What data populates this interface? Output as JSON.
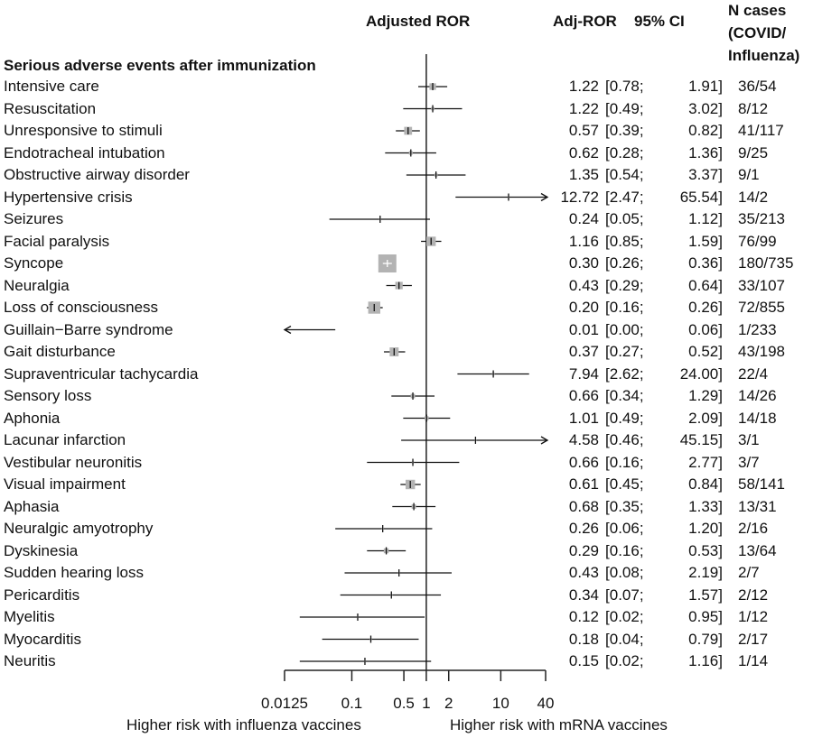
{
  "chart_data": {
    "type": "forest",
    "headers": {
      "plot": "Adjusted ROR",
      "estimate": "Adj-ROR",
      "ci": "95% CI",
      "cases": [
        "N cases",
        "(COVID/",
        "Influenza)"
      ]
    },
    "group_label": "Serious adverse events after immunization",
    "x_scale": "log",
    "xlim": [
      0.0125,
      40
    ],
    "x_ticks": [
      "0.0125",
      "0.1",
      "0.5",
      "1",
      "2",
      "10",
      "40"
    ],
    "reference_line": 1,
    "xlabel_left": "Higher risk with influenza vaccines",
    "xlabel_right": "Higher risk with mRNA vaccines",
    "box_color": "#b3b3b3",
    "rows": [
      {
        "label": "Intensive care",
        "ror": "1.22",
        "lo": "0.78",
        "hi": "1.91",
        "cases": "36/54"
      },
      {
        "label": "Resuscitation",
        "ror": "1.22",
        "lo": "0.49",
        "hi": "3.02",
        "cases": "8/12"
      },
      {
        "label": "Unresponsive to stimuli",
        "ror": "0.57",
        "lo": "0.39",
        "hi": "0.82",
        "cases": "41/117"
      },
      {
        "label": "Endotracheal intubation",
        "ror": "0.62",
        "lo": "0.28",
        "hi": "1.36",
        "cases": "9/25"
      },
      {
        "label": "Obstructive airway disorder",
        "ror": "1.35",
        "lo": "0.54",
        "hi": "3.37",
        "cases": "9/1"
      },
      {
        "label": "Hypertensive crisis",
        "ror": "12.72",
        "lo": "2.47",
        "hi": "65.54",
        "cases": "14/2"
      },
      {
        "label": "Seizures",
        "ror": "0.24",
        "lo": "0.05",
        "hi": "1.12",
        "cases": "35/213"
      },
      {
        "label": "Facial paralysis",
        "ror": "1.16",
        "lo": "0.85",
        "hi": "1.59",
        "cases": "76/99"
      },
      {
        "label": "Syncope",
        "ror": "0.30",
        "lo": "0.26",
        "hi": "0.36",
        "cases": "180/735"
      },
      {
        "label": "Neuralgia",
        "ror": "0.43",
        "lo": "0.29",
        "hi": "0.64",
        "cases": "33/107"
      },
      {
        "label": "Loss of consciousness",
        "ror": "0.20",
        "lo": "0.16",
        "hi": "0.26",
        "cases": "72/855"
      },
      {
        "label": "Guillain−Barre syndrome",
        "ror": "0.01",
        "lo": "0.00",
        "hi": "0.06",
        "cases": "1/233"
      },
      {
        "label": "Gait disturbance",
        "ror": "0.37",
        "lo": "0.27",
        "hi": "0.52",
        "cases": "43/198"
      },
      {
        "label": "Supraventricular tachycardia",
        "ror": "7.94",
        "lo": "2.62",
        "hi": "24.00",
        "cases": "22/4"
      },
      {
        "label": "Sensory loss",
        "ror": "0.66",
        "lo": "0.34",
        "hi": "1.29",
        "cases": "14/26"
      },
      {
        "label": "Aphonia",
        "ror": "1.01",
        "lo": "0.49",
        "hi": "2.09",
        "cases": "14/18"
      },
      {
        "label": "Lacunar infarction",
        "ror": "4.58",
        "lo": "0.46",
        "hi": "45.15",
        "cases": "3/1"
      },
      {
        "label": "Vestibular neuronitis",
        "ror": "0.66",
        "lo": "0.16",
        "hi": "2.77",
        "cases": "3/7"
      },
      {
        "label": "Visual impairment",
        "ror": "0.61",
        "lo": "0.45",
        "hi": "0.84",
        "cases": "58/141"
      },
      {
        "label": "Aphasia",
        "ror": "0.68",
        "lo": "0.35",
        "hi": "1.33",
        "cases": "13/31"
      },
      {
        "label": "Neuralgic amyotrophy",
        "ror": "0.26",
        "lo": "0.06",
        "hi": "1.20",
        "cases": "2/16"
      },
      {
        "label": "Dyskinesia",
        "ror": "0.29",
        "lo": "0.16",
        "hi": "0.53",
        "cases": "13/64"
      },
      {
        "label": "Sudden hearing loss",
        "ror": "0.43",
        "lo": "0.08",
        "hi": "2.19",
        "cases": "2/7"
      },
      {
        "label": "Pericarditis",
        "ror": "0.34",
        "lo": "0.07",
        "hi": "1.57",
        "cases": "2/12"
      },
      {
        "label": "Myelitis",
        "ror": "0.12",
        "lo": "0.02",
        "hi": "0.95",
        "cases": "1/12"
      },
      {
        "label": "Myocarditis",
        "ror": "0.18",
        "lo": "0.04",
        "hi": "0.79",
        "cases": "2/17"
      },
      {
        "label": "Neuritis",
        "ror": "0.15",
        "lo": "0.02",
        "hi": "1.16",
        "cases": "1/14"
      }
    ]
  }
}
